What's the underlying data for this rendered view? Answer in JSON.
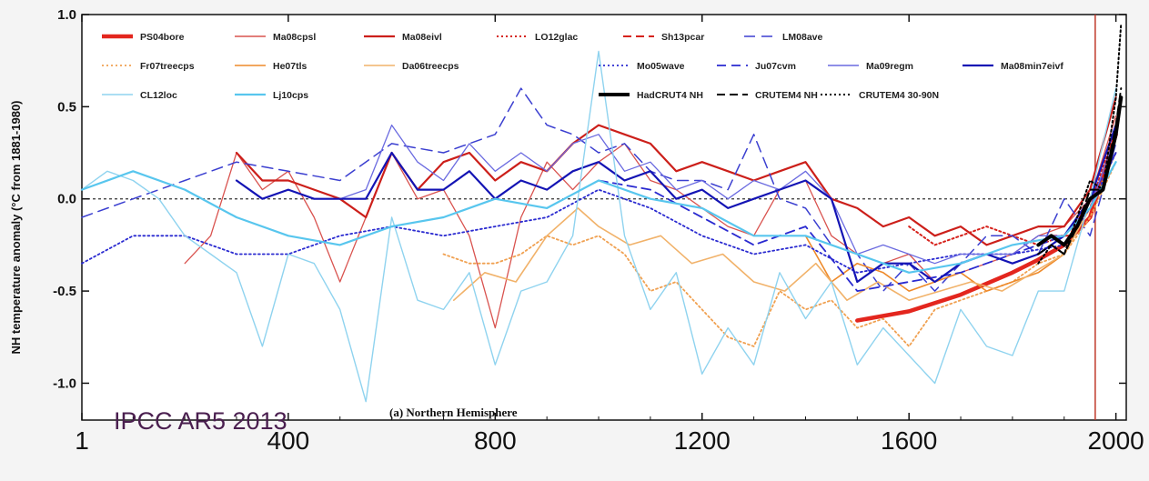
{
  "chart_data": {
    "type": "line",
    "ylabel": "NH temperature anomaly (°C from 1881-1980)",
    "ylim": [
      -1.2,
      1.0
    ],
    "xlim": [
      1,
      2020
    ],
    "yticks": [
      "1.0",
      "0.5",
      "0.0",
      "-0.5",
      "-1.0"
    ],
    "xticks": [
      "1",
      "400",
      "800",
      "1200",
      "1600",
      "2000"
    ],
    "xtick_values": [
      1,
      400,
      800,
      1200,
      1600,
      2000
    ],
    "ytick_values": [
      1.0,
      0.5,
      0.0,
      -0.5,
      -1.0
    ],
    "zero_line": true,
    "vertical_marker": 1960,
    "watermark": "IPCC AR5 2013",
    "panel_label": "(a) Northern Hemisphere",
    "legend_position": "top",
    "series": [
      {
        "name": "PS04bore",
        "color": "#e3261e",
        "width": 4.5,
        "dash": "",
        "x": [
          1500,
          1600,
          1700,
          1800,
          1850,
          1900,
          1950,
          2000
        ],
        "y": [
          -0.66,
          -0.61,
          -0.52,
          -0.4,
          -0.33,
          -0.25,
          -0.1,
          0.35
        ]
      },
      {
        "name": "Ma08cpsl",
        "color": "#d9534f",
        "width": 1.3,
        "dash": "",
        "x": [
          200,
          250,
          300,
          350,
          400,
          450,
          500,
          550,
          600,
          650,
          700,
          750,
          800,
          850,
          900,
          950,
          1000,
          1050,
          1100,
          1150,
          1200,
          1250,
          1300,
          1350,
          1400,
          1450,
          1500,
          1550,
          1600,
          1650,
          1700,
          1750,
          1800,
          1850,
          1900,
          1950,
          2000
        ],
        "y": [
          -0.35,
          -0.2,
          0.25,
          0.05,
          0.15,
          -0.1,
          -0.45,
          -0.1,
          0.25,
          0.0,
          0.05,
          -0.2,
          -0.7,
          -0.1,
          0.2,
          0.05,
          0.2,
          0.3,
          0.1,
          0.05,
          -0.05,
          -0.15,
          -0.2,
          0.05,
          0.1,
          -0.2,
          -0.3,
          -0.35,
          -0.3,
          -0.45,
          -0.4,
          -0.35,
          -0.3,
          -0.2,
          -0.15,
          0.0,
          0.45
        ]
      },
      {
        "name": "Ma08eivl",
        "color": "#cc1f1a",
        "width": 2.2,
        "dash": "",
        "x": [
          300,
          350,
          400,
          450,
          500,
          550,
          600,
          650,
          700,
          750,
          800,
          850,
          900,
          950,
          1000,
          1050,
          1100,
          1150,
          1200,
          1250,
          1300,
          1350,
          1400,
          1450,
          1500,
          1550,
          1600,
          1650,
          1700,
          1750,
          1800,
          1850,
          1900,
          1950,
          2000
        ],
        "y": [
          0.25,
          0.1,
          0.1,
          0.05,
          0.0,
          -0.1,
          0.25,
          0.05,
          0.2,
          0.25,
          0.1,
          0.2,
          0.15,
          0.3,
          0.4,
          0.35,
          0.3,
          0.15,
          0.2,
          0.15,
          0.1,
          0.15,
          0.2,
          0.0,
          -0.05,
          -0.15,
          -0.1,
          -0.2,
          -0.15,
          -0.25,
          -0.2,
          -0.15,
          -0.15,
          0.05,
          0.55
        ]
      },
      {
        "name": "LO12glac",
        "color": "#d6221c",
        "width": 2,
        "dash": "2,3",
        "x": [
          1600,
          1650,
          1700,
          1750,
          1800,
          1850,
          1900,
          1950,
          2000
        ],
        "y": [
          -0.15,
          -0.25,
          -0.2,
          -0.15,
          -0.2,
          -0.25,
          -0.2,
          -0.05,
          0.4
        ]
      },
      {
        "name": "Sh13pcar",
        "color": "#d6221c",
        "width": 2,
        "dash": "9,5",
        "x": [
          1850,
          1880,
          1910,
          1940,
          1970,
          2000
        ],
        "y": [
          -0.25,
          -0.2,
          -0.2,
          -0.05,
          0.05,
          0.4
        ]
      },
      {
        "name": "LM08ave",
        "color": "#3b3fd0",
        "width": 1.5,
        "dash": "12,7",
        "x": [
          1,
          100,
          200,
          300,
          400,
          500,
          600,
          700,
          800,
          850,
          900,
          950,
          1000,
          1050,
          1100,
          1150,
          1200,
          1250,
          1300,
          1350,
          1400,
          1450,
          1500,
          1550,
          1600,
          1650,
          1700,
          1750,
          1800,
          1850,
          1900,
          1950,
          2000
        ],
        "y": [
          -0.1,
          0.0,
          0.1,
          0.2,
          0.15,
          0.1,
          0.3,
          0.25,
          0.35,
          0.6,
          0.4,
          0.35,
          0.25,
          0.3,
          0.15,
          0.1,
          0.1,
          0.05,
          0.35,
          0.0,
          -0.05,
          -0.25,
          -0.3,
          -0.5,
          -0.35,
          -0.5,
          -0.35,
          -0.2,
          -0.2,
          -0.3,
          0.0,
          -0.2,
          0.3
        ]
      },
      {
        "name": "Fr07treecps",
        "color": "#f0a050",
        "width": 1.8,
        "dash": "2,3",
        "x": [
          700,
          750,
          800,
          850,
          900,
          950,
          1000,
          1050,
          1100,
          1150,
          1200,
          1250,
          1300,
          1350,
          1400,
          1450,
          1500,
          1550,
          1600,
          1650,
          1700,
          1750,
          1800,
          1850,
          1900,
          1950,
          2000
        ],
        "y": [
          -0.3,
          -0.35,
          -0.35,
          -0.3,
          -0.2,
          -0.25,
          -0.2,
          -0.3,
          -0.5,
          -0.45,
          -0.6,
          -0.75,
          -0.8,
          -0.5,
          -0.6,
          -0.55,
          -0.7,
          -0.65,
          -0.8,
          -0.6,
          -0.55,
          -0.5,
          -0.45,
          -0.35,
          -0.3,
          -0.1,
          0.2
        ]
      },
      {
        "name": "He07tls",
        "color": "#ee8a2a",
        "width": 1.6,
        "dash": "",
        "x": [
          1400,
          1450,
          1500,
          1550,
          1600,
          1650,
          1700,
          1750,
          1800,
          1850,
          1900,
          1950,
          2000
        ],
        "y": [
          -0.2,
          -0.45,
          -0.35,
          -0.4,
          -0.5,
          -0.45,
          -0.4,
          -0.5,
          -0.45,
          -0.4,
          -0.3,
          -0.05,
          0.25
        ]
      },
      {
        "name": "Da06treecps",
        "color": "#f1b26a",
        "width": 1.6,
        "dash": "",
        "x": [
          720,
          780,
          840,
          900,
          960,
          1000,
          1060,
          1120,
          1180,
          1240,
          1300,
          1360,
          1420,
          1480,
          1540,
          1600,
          1660,
          1720,
          1780,
          1840,
          1900,
          1950,
          2000
        ],
        "y": [
          -0.55,
          -0.4,
          -0.45,
          -0.2,
          -0.05,
          -0.15,
          -0.25,
          -0.2,
          -0.35,
          -0.3,
          -0.45,
          -0.5,
          -0.35,
          -0.55,
          -0.45,
          -0.55,
          -0.5,
          -0.45,
          -0.5,
          -0.4,
          -0.3,
          -0.05,
          0.2
        ]
      },
      {
        "name": "Mo05wave",
        "color": "#2a2ad0",
        "width": 1.8,
        "dash": "2,3",
        "x": [
          1,
          100,
          200,
          300,
          400,
          500,
          600,
          700,
          800,
          900,
          1000,
          1100,
          1200,
          1300,
          1400,
          1500,
          1600,
          1700,
          1800,
          1900,
          1950,
          2000
        ],
        "y": [
          -0.35,
          -0.2,
          -0.2,
          -0.3,
          -0.3,
          -0.2,
          -0.15,
          -0.2,
          -0.15,
          -0.1,
          0.05,
          -0.05,
          -0.2,
          -0.3,
          -0.25,
          -0.4,
          -0.35,
          -0.3,
          -0.3,
          -0.25,
          -0.05,
          0.25
        ]
      },
      {
        "name": "Ju07cvm",
        "color": "#2a2ad0",
        "width": 1.8,
        "dash": "10,6",
        "x": [
          1000,
          1100,
          1200,
          1300,
          1400,
          1500,
          1600,
          1700,
          1800,
          1900,
          1950,
          2000
        ],
        "y": [
          0.1,
          0.05,
          -0.1,
          -0.25,
          -0.15,
          -0.5,
          -0.45,
          -0.4,
          -0.3,
          -0.2,
          0.0,
          0.25
        ]
      },
      {
        "name": "Ma09regm",
        "color": "#6a6ae0",
        "width": 1.3,
        "dash": "",
        "x": [
          500,
          550,
          600,
          650,
          700,
          750,
          800,
          850,
          900,
          950,
          1000,
          1050,
          1100,
          1150,
          1200,
          1250,
          1300,
          1350,
          1400,
          1450,
          1500,
          1550,
          1600,
          1650,
          1700,
          1750,
          1800,
          1850,
          1900,
          1950,
          2000
        ],
        "y": [
          0.0,
          0.05,
          0.4,
          0.2,
          0.1,
          0.3,
          0.15,
          0.25,
          0.15,
          0.3,
          0.35,
          0.15,
          0.2,
          0.05,
          0.1,
          0.0,
          0.1,
          0.05,
          0.15,
          0.0,
          -0.3,
          -0.25,
          -0.3,
          -0.35,
          -0.3,
          -0.3,
          -0.3,
          -0.2,
          -0.2,
          -0.05,
          0.35
        ]
      },
      {
        "name": "Ma08min7eivf",
        "color": "#1414b4",
        "width": 2.2,
        "dash": "",
        "x": [
          300,
          350,
          400,
          450,
          500,
          550,
          600,
          650,
          700,
          750,
          800,
          850,
          900,
          950,
          1000,
          1050,
          1100,
          1150,
          1200,
          1250,
          1300,
          1350,
          1400,
          1450,
          1500,
          1550,
          1600,
          1650,
          1700,
          1750,
          1800,
          1850,
          1900,
          1950,
          2000
        ],
        "y": [
          0.1,
          0.0,
          0.05,
          0.0,
          0.0,
          0.0,
          0.25,
          0.05,
          0.05,
          0.15,
          0.0,
          0.1,
          0.05,
          0.15,
          0.2,
          0.1,
          0.15,
          0.0,
          0.05,
          -0.05,
          0.0,
          0.05,
          0.1,
          0.0,
          -0.45,
          -0.35,
          -0.35,
          -0.45,
          -0.35,
          -0.3,
          -0.35,
          -0.3,
          -0.2,
          0.0,
          0.4
        ]
      },
      {
        "name": "CL12loc",
        "color": "#8fd3ef",
        "width": 1.4,
        "dash": "",
        "x": [
          1,
          50,
          100,
          150,
          200,
          250,
          300,
          350,
          400,
          450,
          500,
          550,
          600,
          650,
          700,
          750,
          800,
          850,
          900,
          950,
          1000,
          1050,
          1100,
          1150,
          1200,
          1250,
          1300,
          1350,
          1400,
          1450,
          1500,
          1550,
          1600,
          1650,
          1700,
          1750,
          1800,
          1850,
          1900,
          1950,
          2000
        ],
        "y": [
          0.05,
          0.15,
          0.1,
          0.0,
          -0.2,
          -0.3,
          -0.4,
          -0.8,
          -0.3,
          -0.35,
          -0.6,
          -1.1,
          -0.1,
          -0.55,
          -0.6,
          -0.4,
          -0.9,
          -0.5,
          -0.45,
          -0.2,
          0.8,
          -0.2,
          -0.6,
          -0.4,
          -0.95,
          -0.7,
          -0.9,
          -0.4,
          -0.65,
          -0.45,
          -0.9,
          -0.7,
          -0.85,
          -1.0,
          -0.6,
          -0.8,
          -0.85,
          -0.5,
          -0.5,
          0.0,
          0.6
        ]
      },
      {
        "name": "Lj10cps",
        "color": "#58c6ee",
        "width": 2.2,
        "dash": "",
        "x": [
          1,
          100,
          200,
          300,
          400,
          500,
          600,
          700,
          800,
          900,
          1000,
          1100,
          1200,
          1300,
          1400,
          1500,
          1600,
          1700,
          1800,
          1900,
          1950,
          2000
        ],
        "y": [
          0.05,
          0.15,
          0.05,
          -0.1,
          -0.2,
          -0.25,
          -0.15,
          -0.1,
          0.0,
          -0.05,
          0.1,
          0.0,
          -0.05,
          -0.2,
          -0.2,
          -0.3,
          -0.4,
          -0.35,
          -0.25,
          -0.2,
          -0.05,
          0.2
        ]
      },
      {
        "name": "HadCRUT4 NH",
        "color": "#000000",
        "width": 4,
        "dash": "",
        "x": [
          1850,
          1875,
          1900,
          1925,
          1950,
          1975,
          2000,
          2010
        ],
        "y": [
          -0.25,
          -0.2,
          -0.25,
          -0.15,
          0.0,
          0.05,
          0.35,
          0.55
        ]
      },
      {
        "name": "CRUTEM4 NH",
        "color": "#000000",
        "width": 2,
        "dash": "9,5",
        "x": [
          1850,
          1875,
          1900,
          1925,
          1950,
          1975,
          2000,
          2010
        ],
        "y": [
          -0.3,
          -0.25,
          -0.3,
          -0.15,
          0.05,
          0.05,
          0.4,
          0.6
        ]
      },
      {
        "name": "CRUTEM4 30-90N",
        "color": "#000000",
        "width": 2,
        "dash": "2,3",
        "x": [
          1850,
          1875,
          1900,
          1925,
          1950,
          1975,
          2000,
          2010
        ],
        "y": [
          -0.35,
          -0.25,
          -0.3,
          -0.1,
          0.1,
          0.05,
          0.55,
          0.95
        ]
      }
    ]
  }
}
